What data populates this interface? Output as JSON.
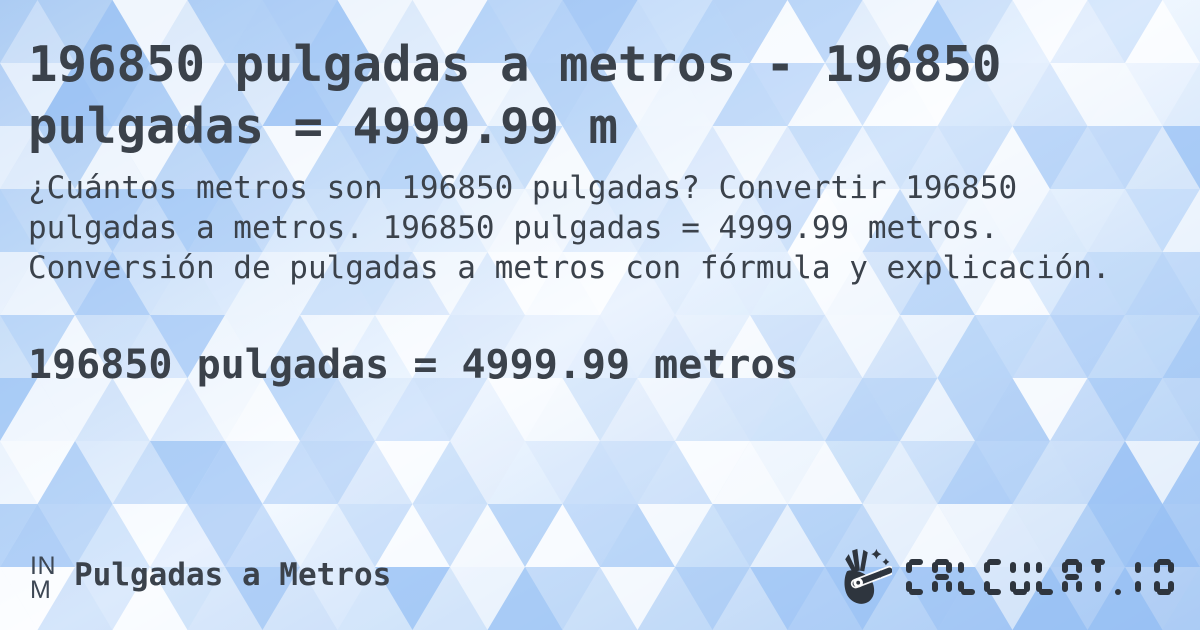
{
  "card": {
    "title": "196850 pulgadas a metros - 196850 pulgadas = 4999.99 m",
    "description": "¿Cuántos metros son 196850 pulgadas? Convertir 196850 pulgadas a metros. 196850 pulgadas = 4999.99 metros. Conversión de pulgadas a metros con fórmula y explicación.",
    "result": "196850 pulgadas = 4999.99 metros"
  },
  "footer": {
    "unit_badge": {
      "top": "IN",
      "bottom": "M"
    },
    "category_label": "Pulgadas a Metros",
    "logo": {
      "icon": "magic-wand-hand-icon",
      "text": "CALCULAT.IO"
    }
  },
  "colors": {
    "text": "#3b424b",
    "logo": "#2e353e",
    "pattern_blue": "#8dbaf3",
    "background_light": "#f4f9ff"
  }
}
